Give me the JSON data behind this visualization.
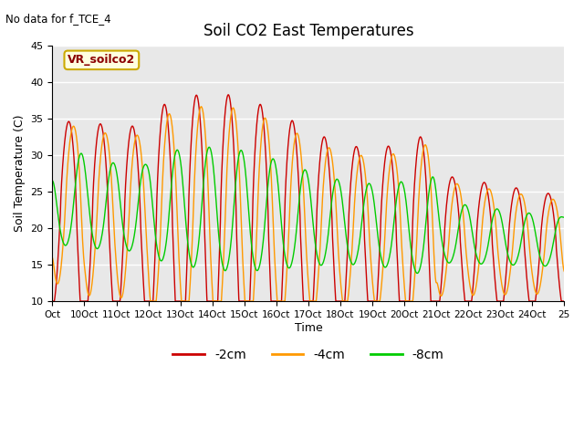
{
  "title": "Soil CO2 East Temperatures",
  "subtitle": "No data for f_TCE_4",
  "ylabel": "Soil Temperature (C)",
  "xlabel": "Time",
  "ylim": [
    10,
    45
  ],
  "bg_color": "#e8e8e8",
  "legend_label": "VR_soilco2",
  "x_tick_labels": [
    "Oct",
    "10Oct",
    "11Oct",
    "12Oct",
    "13Oct",
    "14Oct",
    "15Oct",
    "16Oct",
    "17Oct",
    "18Oct",
    "19Oct",
    "20Oct",
    "21Oct",
    "22Oct",
    "23Oct",
    "24Oct",
    "25"
  ],
  "x_tick_positions": [
    0,
    1,
    2,
    3,
    4,
    5,
    6,
    7,
    8,
    9,
    10,
    11,
    12,
    13,
    14,
    15,
    16
  ],
  "line_colors": {
    "2cm": "#cc0000",
    "4cm": "#ff9900",
    "8cm": "#00cc00"
  },
  "legend_entries": [
    "-2cm",
    "-4cm",
    "-8cm"
  ]
}
